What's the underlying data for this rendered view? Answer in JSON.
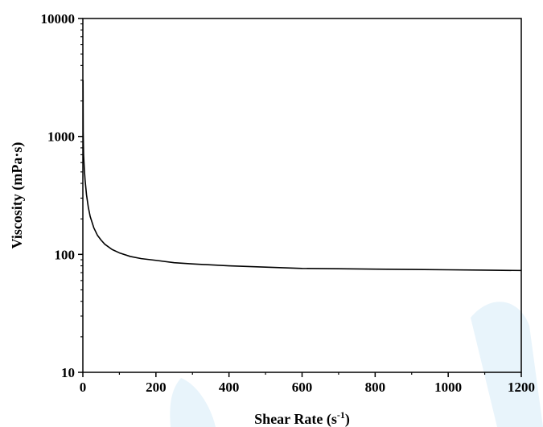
{
  "chart_data": {
    "type": "line",
    "title": "",
    "xlabel": "Shear Rate (s",
    "xlabel_sup": "-1",
    "xlabel_end": ")",
    "ylabel": "Viscosity (mPa·s)",
    "xlim": [
      0,
      1200
    ],
    "ylim": [
      10,
      10000
    ],
    "yscale": "log",
    "grid": false,
    "legend": "none",
    "x_ticks": [
      0,
      200,
      400,
      600,
      800,
      1000,
      1200
    ],
    "x_tick_labels": [
      "0",
      "200",
      "400",
      "600",
      "800",
      "1000",
      "1200"
    ],
    "y_ticks": [
      10,
      100,
      1000,
      10000
    ],
    "y_tick_labels": [
      "10",
      "100",
      "1000",
      "10000"
    ],
    "series": [
      {
        "color": "#000000",
        "x": [
          0.5,
          1,
          2,
          4,
          6,
          10,
          15,
          20,
          30,
          40,
          50,
          60,
          80,
          100,
          130,
          160,
          200,
          250,
          300,
          400,
          500,
          600,
          700,
          800,
          900,
          1000,
          1100,
          1200
        ],
        "y": [
          3000,
          1100,
          700,
          530,
          430,
          320,
          250,
          210,
          168,
          145,
          132,
          122,
          110,
          103,
          96,
          92,
          89,
          85,
          83,
          80,
          78,
          76,
          75.5,
          75,
          74.5,
          74,
          73.5,
          73
        ]
      }
    ]
  },
  "decor": {
    "watermark_color": "#e8f4fb"
  }
}
